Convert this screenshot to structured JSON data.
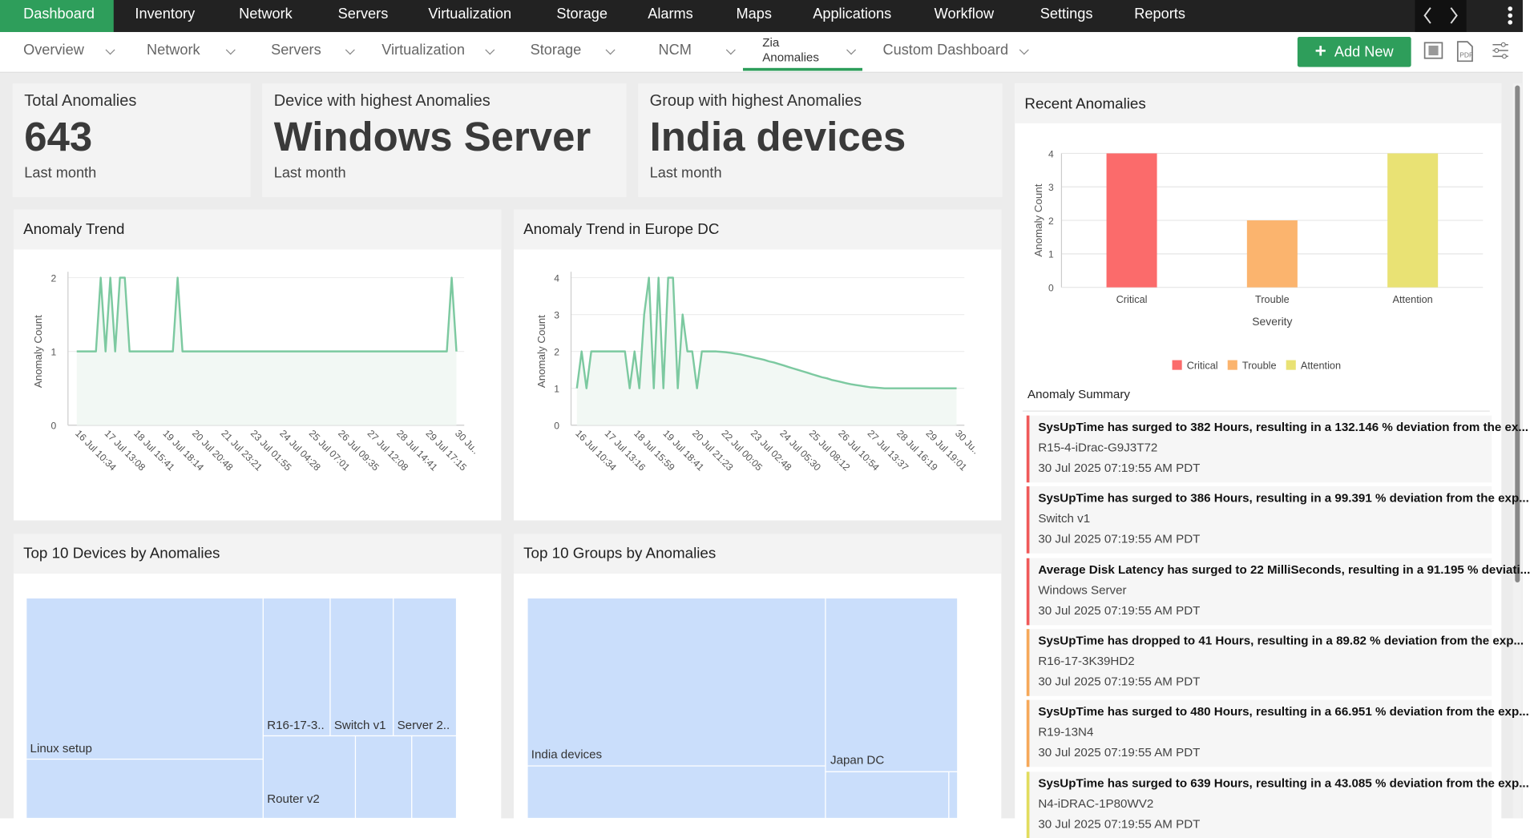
{
  "nav": {
    "items": [
      "Dashboard",
      "Inventory",
      "Network",
      "Servers",
      "Virtualization",
      "Storage",
      "Alarms",
      "Maps",
      "Applications",
      "Workflow",
      "Settings",
      "Reports"
    ]
  },
  "subnav": {
    "tabs": [
      "Overview",
      "Network",
      "Servers",
      "Virtualization",
      "Storage",
      "NCM",
      "Zia Anomalies",
      "Custom Dashboard"
    ],
    "add_button": "Add New"
  },
  "kpis": [
    {
      "title": "Total Anomalies",
      "value": 643,
      "period": "Last month"
    },
    {
      "title": "Device with highest Anomalies",
      "value": "Windows Server",
      "period": "Last month"
    },
    {
      "title": "Group with highest Anomalies",
      "value": "India devices",
      "period": "Last month"
    }
  ],
  "trend_charts": [
    {
      "type": "line",
      "title": "Anomaly Trend",
      "y_label": "Anomaly Count",
      "color": "#7cc9a0",
      "ylim": [
        0,
        2
      ],
      "yticks": [
        0,
        1,
        2
      ],
      "x_ticks": [
        "16 Jul 10:34",
        "17 Jul 13:08",
        "18 Jul 15:41",
        "19 Jul 18:14",
        "20 Jul 20:48",
        "21 Jul 23:21",
        "23 Jul 01:55",
        "24 Jul 04:28",
        "25 Jul 07:01",
        "26 Jul 09:35",
        "27 Jul 12:08",
        "28 Jul 14:41",
        "29 Jul 17:15",
        "30 Ju.."
      ],
      "values": [
        1,
        1,
        1,
        1,
        1,
        2,
        1,
        2,
        1,
        2,
        2,
        1,
        1,
        1,
        1,
        1,
        1,
        1,
        1,
        1,
        1,
        2,
        1,
        1,
        1,
        1,
        1,
        1,
        1,
        1,
        1,
        1,
        1,
        1,
        1,
        1,
        1,
        1,
        1,
        1,
        1,
        1,
        1,
        1,
        1,
        1,
        1,
        1,
        1,
        1,
        1,
        1,
        1,
        1,
        1,
        1,
        1,
        1,
        1,
        1,
        1,
        1,
        1,
        1,
        1,
        1,
        1,
        1,
        1,
        1,
        1,
        1,
        1,
        1,
        1,
        1,
        1,
        1,
        2,
        1
      ]
    },
    {
      "type": "line",
      "title": "Anomaly Trend in Europe DC",
      "y_label": "Anomaly Count",
      "color": "#7cc9a0",
      "ylim": [
        0,
        4
      ],
      "yticks": [
        0,
        1,
        2,
        3,
        4
      ],
      "x_ticks": [
        "16 Jul 10:34",
        "17 Jul 13:16",
        "18 Jul 15:59",
        "19 Jul 18:41",
        "20 Jul 21:23",
        "22 Jul 00:05",
        "23 Jul 02:48",
        "24 Jul 05:30",
        "25 Jul 08:12",
        "26 Jul 10:54",
        "27 Jul 13:37",
        "28 Jul 16:19",
        "29 Jul 19:01",
        "30 Ju.."
      ],
      "values": [
        1,
        2,
        1,
        2,
        2,
        2,
        2,
        2,
        2,
        2,
        2,
        1,
        2,
        1,
        3,
        4,
        1,
        4,
        1,
        4,
        4,
        1,
        3,
        2,
        2,
        1,
        2,
        2,
        2,
        2,
        1.99,
        1.98,
        1.96,
        1.94,
        1.92,
        1.89,
        1.86,
        1.83,
        1.8,
        1.77,
        1.73,
        1.7,
        1.66,
        1.62,
        1.58,
        1.54,
        1.5,
        1.46,
        1.42,
        1.38,
        1.34,
        1.3,
        1.27,
        1.23,
        1.2,
        1.17,
        1.14,
        1.11,
        1.09,
        1.07,
        1.05,
        1.03,
        1.02,
        1.01,
        1,
        1,
        1,
        1,
        1,
        1,
        1,
        1,
        1,
        1,
        1,
        1,
        1,
        1,
        1,
        1
      ]
    }
  ],
  "recent": {
    "title": "Recent Anomalies",
    "chart": {
      "type": "bar",
      "x_label": "Severity",
      "y_label": "Anomaly Count",
      "categories": [
        "Critical",
        "Trouble",
        "Attention"
      ],
      "values": [
        4,
        2,
        4
      ],
      "colors": [
        "#fb6b6b",
        "#fbb46e",
        "#e9e274"
      ],
      "ylim": [
        0,
        4
      ],
      "yticks": [
        0,
        1,
        2,
        3,
        4
      ],
      "grid": true
    },
    "summary_title": "Anomaly Summary",
    "items": [
      {
        "text": "SysUpTime has surged to 382 Hours, resulting in a 132.146 % deviation from the ex...",
        "device": "R15-4-iDrac-G9J3T72",
        "time": "30 Jul 2025 07:19:55 AM PDT",
        "color": "#f05a5a"
      },
      {
        "text": "SysUpTime has surged to 386 Hours, resulting in a 99.391 % deviation from the exp...",
        "device": "Switch v1",
        "time": "30 Jul 2025 07:19:55 AM PDT",
        "color": "#f05a5a"
      },
      {
        "text": "Average Disk Latency has surged to 22 MilliSeconds, resulting in a 91.195 % deviati...",
        "device": "Windows Server",
        "time": "30 Jul 2025 07:19:55 AM PDT",
        "color": "#f05a5a"
      },
      {
        "text": "SysUpTime has dropped to 41 Hours, resulting in a 89.82 % deviation from the exp...",
        "device": "R16-17-3K39HD2",
        "time": "30 Jul 2025 07:19:55 AM PDT",
        "color": "#f6a95a"
      },
      {
        "text": "SysUpTime has surged to 480 Hours, resulting in a 66.951 % deviation from the exp...",
        "device": "R19-13N4",
        "time": "30 Jul 2025 07:19:55 AM PDT",
        "color": "#f6a95a"
      },
      {
        "text": "SysUpTime has surged to 639 Hours, resulting in a 43.085 % deviation from the exp...",
        "device": "N4-iDRAC-1P80WV2",
        "time": "30 Jul 2025 07:19:55 AM PDT",
        "color": "#e2dc5e"
      }
    ]
  },
  "treemaps": [
    {
      "title": "Top 10 Devices by Anomalies",
      "labels": [
        "Linux setup",
        "R16-17-3..",
        "Switch v1",
        "Server 2..",
        "Router v2"
      ]
    },
    {
      "title": "Top 10 Groups by Anomalies",
      "labels": [
        "India devices",
        "Japan DC"
      ]
    }
  ]
}
